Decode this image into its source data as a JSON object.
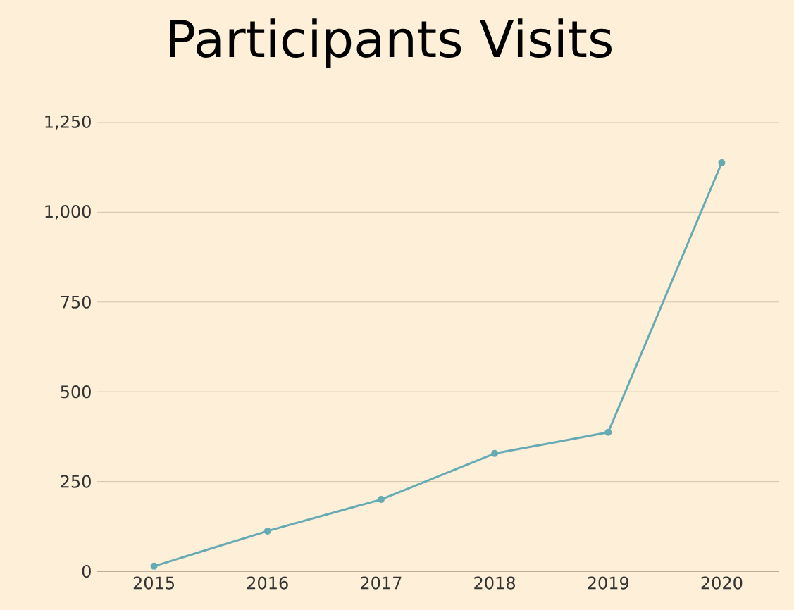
{
  "chart_data": {
    "type": "line",
    "title": "Participants Visits",
    "categories": [
      "2015",
      "2016",
      "2017",
      "2018",
      "2019",
      "2020"
    ],
    "series": [
      {
        "color": "#66aab3",
        "values": [
          14,
          112,
          200,
          328,
          387,
          1138
        ]
      }
    ],
    "ylim": [
      0,
      1250
    ],
    "yticks": [
      0,
      250,
      500,
      750,
      {
        "value": 1000,
        "label": "1,000"
      },
      {
        "value": 1250,
        "label": "1,250"
      }
    ],
    "grid": "y",
    "marker": "circle",
    "line_style": "solid"
  }
}
